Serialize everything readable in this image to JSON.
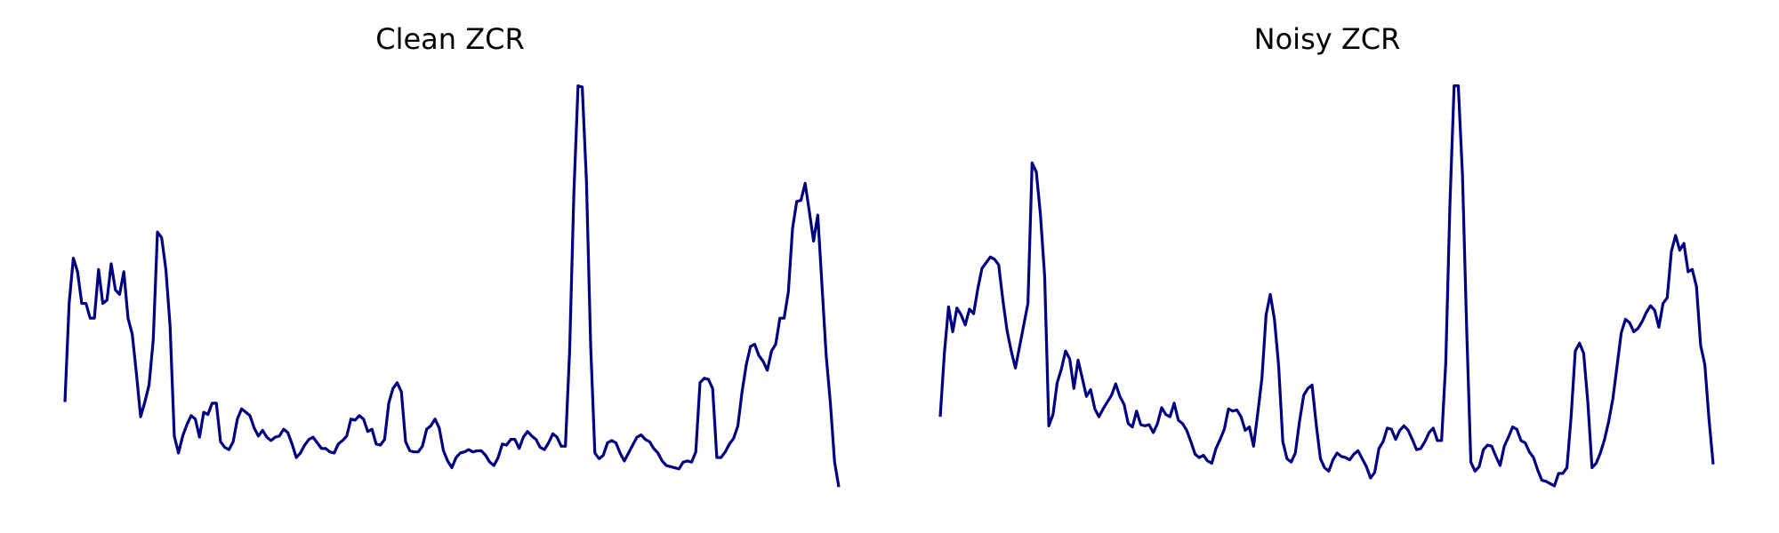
{
  "chart_data": [
    {
      "type": "line",
      "title": "Clean ZCR",
      "color": "#000080",
      "ylim": [
        0,
        0.37
      ],
      "values": [
        0.085,
        0.172,
        0.212,
        0.2,
        0.172,
        0.172,
        0.159,
        0.159,
        0.202,
        0.172,
        0.175,
        0.207,
        0.184,
        0.18,
        0.2,
        0.159,
        0.145,
        0.11,
        0.072,
        0.085,
        0.1,
        0.14,
        0.235,
        0.23,
        0.202,
        0.152,
        0.055,
        0.04,
        0.055,
        0.065,
        0.073,
        0.07,
        0.054,
        0.076,
        0.074,
        0.084,
        0.084,
        0.05,
        0.045,
        0.043,
        0.05,
        0.07,
        0.079,
        0.076,
        0.073,
        0.062,
        0.055,
        0.06,
        0.054,
        0.051,
        0.054,
        0.055,
        0.061,
        0.058,
        0.048,
        0.036,
        0.04,
        0.047,
        0.052,
        0.054,
        0.049,
        0.044,
        0.044,
        0.041,
        0.04,
        0.048,
        0.051,
        0.055,
        0.07,
        0.069,
        0.073,
        0.07,
        0.059,
        0.061,
        0.048,
        0.047,
        0.052,
        0.084,
        0.097,
        0.102,
        0.094,
        0.05,
        0.042,
        0.041,
        0.041,
        0.046,
        0.061,
        0.064,
        0.07,
        0.062,
        0.042,
        0.033,
        0.027,
        0.036,
        0.04,
        0.041,
        0.043,
        0.041,
        0.042,
        0.042,
        0.038,
        0.032,
        0.029,
        0.036,
        0.048,
        0.047,
        0.052,
        0.052,
        0.044,
        0.054,
        0.059,
        0.055,
        0.052,
        0.045,
        0.043,
        0.049,
        0.057,
        0.054,
        0.046,
        0.046,
        0.13,
        0.268,
        0.364,
        0.363,
        0.28,
        0.135,
        0.04,
        0.035,
        0.038,
        0.049,
        0.051,
        0.049,
        0.04,
        0.033,
        0.04,
        0.047,
        0.054,
        0.056,
        0.052,
        0.05,
        0.044,
        0.04,
        0.033,
        0.029,
        0.028,
        0.027,
        0.026,
        0.032,
        0.033,
        0.032,
        0.041,
        0.102,
        0.106,
        0.105,
        0.097,
        0.036,
        0.036,
        0.041,
        0.048,
        0.053,
        0.064,
        0.094,
        0.118,
        0.134,
        0.136,
        0.126,
        0.121,
        0.113,
        0.13,
        0.136,
        0.159,
        0.159,
        0.182,
        0.238,
        0.262,
        0.263,
        0.278,
        0.253,
        0.227,
        0.25,
        0.188,
        0.126,
        0.084,
        0.032,
        0.01
      ]
    },
    {
      "type": "line",
      "title": "Noisy ZCR",
      "color": "#000080",
      "ylim": [
        0,
        0.37
      ],
      "values": [
        0.072,
        0.128,
        0.169,
        0.147,
        0.168,
        0.162,
        0.153,
        0.167,
        0.163,
        0.185,
        0.203,
        0.208,
        0.213,
        0.211,
        0.206,
        0.175,
        0.148,
        0.13,
        0.115,
        0.134,
        0.153,
        0.172,
        0.296,
        0.288,
        0.25,
        0.196,
        0.064,
        0.074,
        0.102,
        0.114,
        0.13,
        0.123,
        0.097,
        0.122,
        0.106,
        0.09,
        0.096,
        0.079,
        0.072,
        0.079,
        0.085,
        0.091,
        0.101,
        0.09,
        0.083,
        0.066,
        0.063,
        0.077,
        0.065,
        0.064,
        0.065,
        0.058,
        0.066,
        0.08,
        0.074,
        0.072,
        0.084,
        0.069,
        0.066,
        0.06,
        0.05,
        0.039,
        0.036,
        0.038,
        0.033,
        0.031,
        0.044,
        0.052,
        0.061,
        0.079,
        0.077,
        0.078,
        0.072,
        0.06,
        0.063,
        0.046,
        0.075,
        0.106,
        0.162,
        0.18,
        0.158,
        0.117,
        0.05,
        0.035,
        0.032,
        0.04,
        0.068,
        0.091,
        0.097,
        0.1,
        0.065,
        0.035,
        0.027,
        0.024,
        0.034,
        0.04,
        0.037,
        0.036,
        0.034,
        0.039,
        0.042,
        0.035,
        0.028,
        0.018,
        0.023,
        0.044,
        0.05,
        0.062,
        0.061,
        0.052,
        0.06,
        0.064,
        0.06,
        0.052,
        0.043,
        0.044,
        0.05,
        0.058,
        0.062,
        0.051,
        0.051,
        0.12,
        0.26,
        0.364,
        0.364,
        0.285,
        0.15,
        0.032,
        0.024,
        0.028,
        0.043,
        0.047,
        0.046,
        0.037,
        0.029,
        0.046,
        0.054,
        0.063,
        0.061,
        0.051,
        0.049,
        0.041,
        0.036,
        0.025,
        0.016,
        0.015,
        0.013,
        0.011,
        0.022,
        0.022,
        0.027,
        0.072,
        0.13,
        0.137,
        0.128,
        0.085,
        0.027,
        0.031,
        0.04,
        0.052,
        0.068,
        0.088,
        0.117,
        0.146,
        0.158,
        0.155,
        0.147,
        0.15,
        0.156,
        0.164,
        0.17,
        0.166,
        0.151,
        0.172,
        0.177,
        0.218,
        0.232,
        0.219,
        0.225,
        0.2,
        0.202,
        0.187,
        0.135,
        0.118,
        0.07,
        0.03
      ]
    }
  ]
}
